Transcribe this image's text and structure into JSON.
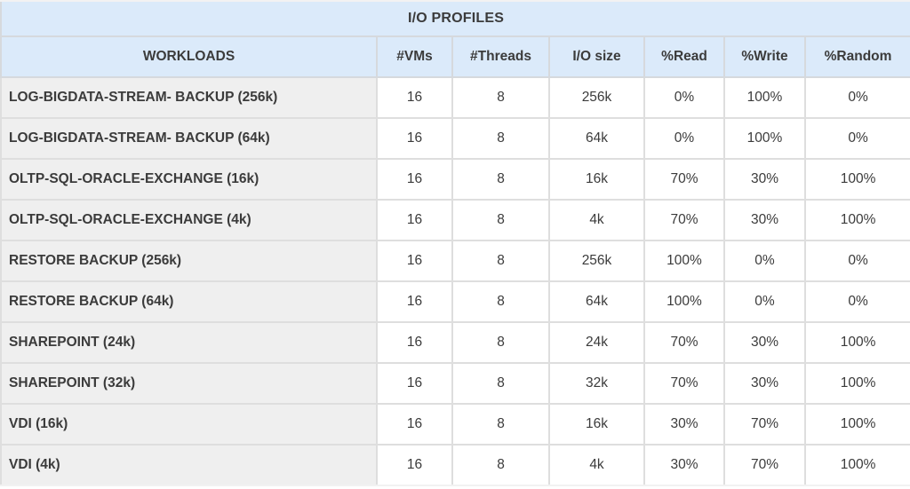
{
  "colors": {
    "header_bg": "#dbeafa",
    "workload_cell_bg": "#efefef",
    "value_cell_bg": "#ffffff",
    "border": "#dedede",
    "text": "#3b3b3b"
  },
  "chart_data": {
    "type": "table",
    "title": "I/O PROFILES",
    "columns": [
      "WORKLOADS",
      "#VMs",
      "#Threads",
      "I/O size",
      "%Read",
      "%Write",
      "%Random"
    ],
    "rows": [
      [
        "LOG-BIGDATA-STREAM- BACKUP (256k)",
        "16",
        "8",
        "256k",
        "0%",
        "100%",
        "0%"
      ],
      [
        "LOG-BIGDATA-STREAM- BACKUP (64k)",
        "16",
        "8",
        "64k",
        "0%",
        "100%",
        "0%"
      ],
      [
        "OLTP-SQL-ORACLE-EXCHANGE (16k)",
        "16",
        "8",
        "16k",
        "70%",
        "30%",
        "100%"
      ],
      [
        "OLTP-SQL-ORACLE-EXCHANGE (4k)",
        "16",
        "8",
        "4k",
        "70%",
        "30%",
        "100%"
      ],
      [
        "RESTORE BACKUP (256k)",
        "16",
        "8",
        "256k",
        "100%",
        "0%",
        "0%"
      ],
      [
        "RESTORE BACKUP (64k)",
        "16",
        "8",
        "64k",
        "100%",
        "0%",
        "0%"
      ],
      [
        "SHAREPOINT (24k)",
        "16",
        "8",
        "24k",
        "70%",
        "30%",
        "100%"
      ],
      [
        "SHAREPOINT (32k)",
        "16",
        "8",
        "32k",
        "70%",
        "30%",
        "100%"
      ],
      [
        "VDI (16k)",
        "16",
        "8",
        "16k",
        "30%",
        "70%",
        "100%"
      ],
      [
        "VDI (4k)",
        "16",
        "8",
        "4k",
        "30%",
        "70%",
        "100%"
      ]
    ]
  }
}
